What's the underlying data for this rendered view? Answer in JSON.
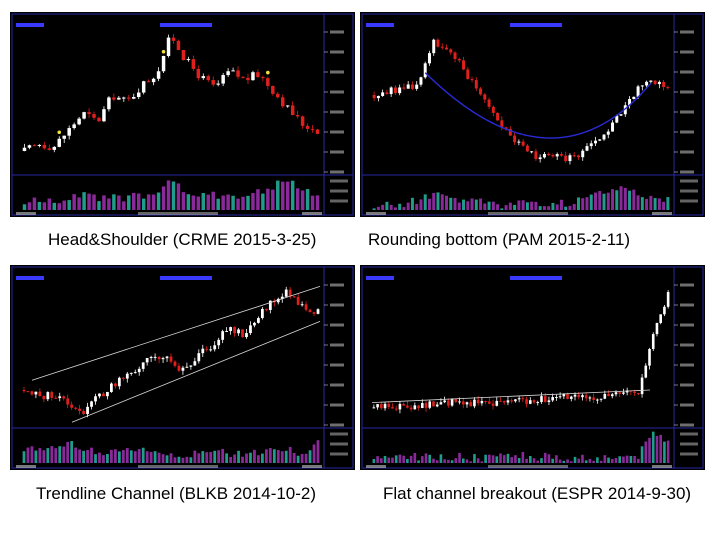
{
  "captions": [
    "Head&Shoulder (CRME 2015-3-25)",
    "Rounding bottom (PAM 2015-2-11)",
    "Trendline Channel (BLKB 2014-10-2)",
    "Flat channel breakout (ESPR 2014-9-30)"
  ],
  "colors": {
    "background": "#000000",
    "up_candle": "#ffffff",
    "down_candle": "#e0201c",
    "volume_a": "#1f9d8a",
    "volume_b": "#8a2a9a",
    "pattern_line": "#2a2ad8",
    "frame": "#2828a0",
    "text_blue": "#3a3aff",
    "label": "#c8c8c8"
  },
  "chart_data": [
    {
      "type": "candlestick",
      "title": "Head&Shoulder (CRME 2015-3-25)",
      "ticker": "CRME",
      "pattern": "head-and-shoulders",
      "price_profile": [
        0.15,
        0.2,
        0.18,
        0.3,
        0.42,
        0.36,
        0.55,
        0.5,
        0.62,
        0.7,
        0.98,
        0.8,
        0.68,
        0.6,
        0.72,
        0.66,
        0.7,
        0.58,
        0.45,
        0.34,
        0.3
      ],
      "volume_profile": [
        0.2,
        0.3,
        0.25,
        0.35,
        0.5,
        0.3,
        0.4,
        0.35,
        0.45,
        0.6,
        0.9,
        0.55,
        0.4,
        0.45,
        0.5,
        0.4,
        0.55,
        0.7,
        0.95,
        0.6,
        0.4
      ],
      "highlight_markers": true,
      "candles": 60
    },
    {
      "type": "candlestick",
      "title": "Rounding bottom (PAM 2015-2-11)",
      "ticker": "PAM",
      "pattern": "rounding-bottom",
      "price_profile": [
        0.55,
        0.58,
        0.6,
        0.62,
        0.95,
        0.85,
        0.75,
        0.6,
        0.45,
        0.3,
        0.18,
        0.12,
        0.1,
        0.1,
        0.12,
        0.2,
        0.3,
        0.45,
        0.6,
        0.65,
        0.62
      ],
      "volume_profile": [
        0.15,
        0.2,
        0.2,
        0.3,
        0.5,
        0.4,
        0.3,
        0.25,
        0.2,
        0.15,
        0.2,
        0.25,
        0.15,
        0.2,
        0.3,
        0.45,
        0.6,
        0.7,
        0.5,
        0.4,
        0.35
      ],
      "guide": "curve",
      "candles": 70
    },
    {
      "type": "candlestick",
      "title": "Trendline Channel (BLKB 2014-10-2)",
      "ticker": "BLKB",
      "pattern": "trendline-channel",
      "price_profile": [
        0.25,
        0.2,
        0.22,
        0.15,
        0.1,
        0.2,
        0.28,
        0.35,
        0.42,
        0.5,
        0.45,
        0.38,
        0.5,
        0.6,
        0.7,
        0.65,
        0.78,
        0.9,
        0.95,
        0.85,
        0.8
      ],
      "volume_profile": [
        0.3,
        0.5,
        0.4,
        0.6,
        0.45,
        0.35,
        0.3,
        0.4,
        0.5,
        0.35,
        0.3,
        0.25,
        0.3,
        0.35,
        0.3,
        0.25,
        0.3,
        0.35,
        0.4,
        0.3,
        0.6
      ],
      "guide": "channel",
      "candles": 75
    },
    {
      "type": "candlestick",
      "title": "Flat channel breakout (ESPR 2014-9-30)",
      "ticker": "ESPR",
      "pattern": "flat-channel-breakout",
      "price_profile": [
        0.12,
        0.14,
        0.13,
        0.15,
        0.14,
        0.16,
        0.15,
        0.17,
        0.16,
        0.18,
        0.17,
        0.19,
        0.18,
        0.2,
        0.19,
        0.21,
        0.2,
        0.22,
        0.21,
        0.65,
        0.92
      ],
      "volume_profile": [
        0.15,
        0.2,
        0.18,
        0.2,
        0.22,
        0.18,
        0.2,
        0.15,
        0.18,
        0.2,
        0.22,
        0.2,
        0.18,
        0.15,
        0.2,
        0.18,
        0.2,
        0.22,
        0.25,
        0.95,
        0.7
      ],
      "guide": "flat",
      "candles": 80
    }
  ]
}
